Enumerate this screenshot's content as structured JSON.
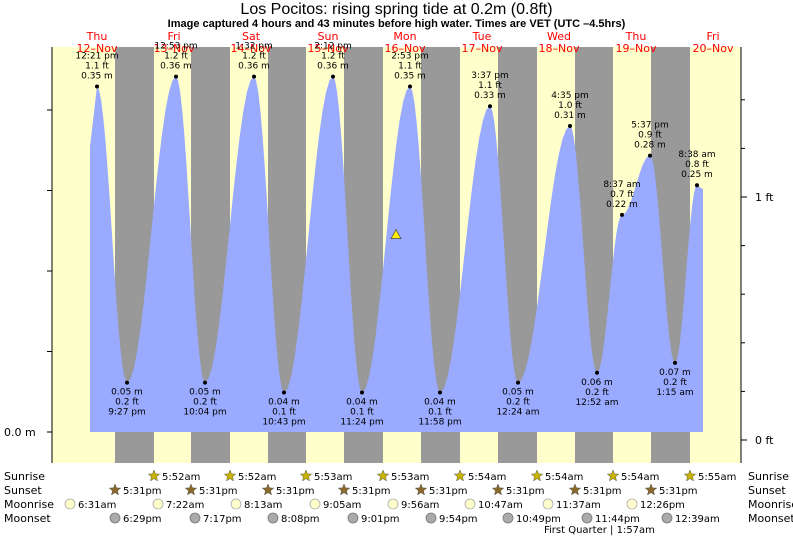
{
  "title": "Los Pocitos: rising  spring tide at 0.2m (0.8ft)",
  "subtitle": "Image captured 4 hours and 43 minutes before high water. Times are VET (UTC –4.5hrs)",
  "colors": {
    "day_band": "#ffffcc",
    "night_band": "#999999",
    "tide_fill": "#99aaff",
    "day_label": "#ff0000",
    "sun_icon": "#c8b400",
    "sunset_icon": "#8a6a2a",
    "moonrise_icon": "#ffffcc",
    "moonset_icon": "#aaaaaa"
  },
  "chart_data": {
    "type": "area",
    "title": "Los Pocitos: rising  spring tide at 0.2m (0.8ft)",
    "days": [
      {
        "dow": "Thu",
        "date": "12–Nov"
      },
      {
        "dow": "Fri",
        "date": "13–Nov"
      },
      {
        "dow": "Sat",
        "date": "14–Nov"
      },
      {
        "dow": "Sun",
        "date": "15–Nov"
      },
      {
        "dow": "Mon",
        "date": "16–Nov"
      },
      {
        "dow": "Tue",
        "date": "17–Nov"
      },
      {
        "dow": "Wed",
        "date": "18–Nov"
      },
      {
        "dow": "Thu",
        "date": "19–Nov"
      },
      {
        "dow": "Fri",
        "date": "20–Nov"
      }
    ],
    "y_unit_left": "m",
    "y_unit_right": "ft",
    "left_axis_label": "0.0 m",
    "right_axis_labels": [
      {
        "text": "1 ft",
        "ft": 1.0
      },
      {
        "text": "0 ft",
        "ft": 0.0
      }
    ],
    "ylim_m": [
      0.0,
      0.39
    ],
    "current_level_m": 0.2,
    "extremes": [
      {
        "type": "high",
        "time": "12:21 pm",
        "ft": "1.1 ft",
        "m": "0.35 m",
        "value_m": 0.35
      },
      {
        "type": "low",
        "time": "9:27 pm",
        "ft": "0.2 ft",
        "m": "0.05 m",
        "value_m": 0.05
      },
      {
        "type": "high",
        "time": "12:53 pm",
        "ft": "1.2 ft",
        "m": "0.36 m",
        "value_m": 0.36
      },
      {
        "type": "low",
        "time": "10:04 pm",
        "ft": "0.2 ft",
        "m": "0.05 m",
        "value_m": 0.05
      },
      {
        "type": "high",
        "time": "1:32 pm",
        "ft": "1.2 ft",
        "m": "0.36 m",
        "value_m": 0.36
      },
      {
        "type": "low",
        "time": "10:43 pm",
        "ft": "0.1 ft",
        "m": "0.04 m",
        "value_m": 0.04
      },
      {
        "type": "high",
        "time": "2:12 pm",
        "ft": "1.2 ft",
        "m": "0.36 m",
        "value_m": 0.36
      },
      {
        "type": "low",
        "time": "11:24 pm",
        "ft": "0.1 ft",
        "m": "0.04 m",
        "value_m": 0.04
      },
      {
        "type": "high",
        "time": "2:53 pm",
        "ft": "1.1 ft",
        "m": "0.35 m",
        "value_m": 0.35
      },
      {
        "type": "low",
        "time": "11:58 pm",
        "ft": "0.1 ft",
        "m": "0.04 m",
        "value_m": 0.04
      },
      {
        "type": "high",
        "time": "3:37 pm",
        "ft": "1.1 ft",
        "m": "0.33 m",
        "value_m": 0.33
      },
      {
        "type": "low",
        "time": "12:24 am",
        "ft": "0.2 ft",
        "m": "0.05 m",
        "value_m": 0.05
      },
      {
        "type": "high",
        "time": "4:35 pm",
        "ft": "1.0 ft",
        "m": "0.31 m",
        "value_m": 0.31
      },
      {
        "type": "low",
        "time": "12:52 am",
        "ft": "0.2 ft",
        "m": "0.06 m",
        "value_m": 0.06
      },
      {
        "type": "high",
        "time": "8:37 am",
        "ft": "0.7 ft",
        "m": "0.22 m",
        "value_m": 0.22
      },
      {
        "type": "high",
        "time": "5:37 pm",
        "ft": "0.9 ft",
        "m": "0.28 m",
        "value_m": 0.28
      },
      {
        "type": "low",
        "time": "1:15 am",
        "ft": "0.2 ft",
        "m": "0.07 m",
        "value_m": 0.07
      },
      {
        "type": "high",
        "time": "8:38 am",
        "ft": "0.8 ft",
        "m": "0.25 m",
        "value_m": 0.25
      }
    ]
  },
  "almanac": {
    "row_labels": [
      "Sunrise",
      "Sunset",
      "Moonrise",
      "Moonset"
    ],
    "sunrise": [
      "5:52am",
      "5:52am",
      "5:53am",
      "5:53am",
      "5:54am",
      "5:54am",
      "5:54am",
      "5:55am"
    ],
    "sunset": [
      "5:31pm",
      "5:31pm",
      "5:31pm",
      "5:31pm",
      "5:31pm",
      "5:31pm",
      "5:31pm",
      "5:31pm"
    ],
    "moonrise": [
      "6:31am",
      "7:22am",
      "8:13am",
      "9:05am",
      "9:56am",
      "10:47am",
      "11:37am",
      "12:26pm"
    ],
    "moonset": [
      "6:29pm",
      "7:17pm",
      "8:08pm",
      "9:01pm",
      "9:54pm",
      "10:49pm",
      "11:44pm",
      "12:39am"
    ],
    "moon_phase": "First Quarter | 1:57am"
  }
}
